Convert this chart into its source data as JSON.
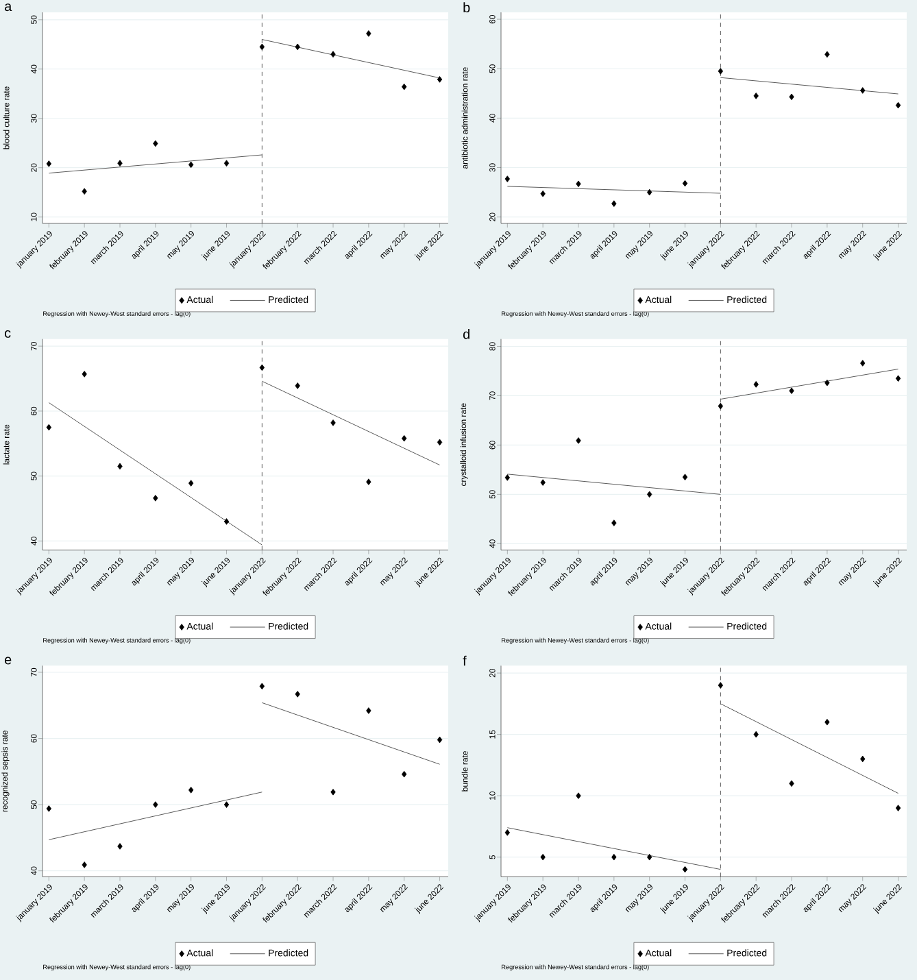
{
  "chart_data": [
    {
      "type": "scatter",
      "title": "a",
      "ylabel": "blood culture rate",
      "categories": [
        "january 2019",
        "february 2019",
        "march 2019",
        "april 2019",
        "may 2019",
        "june 2019",
        "january 2022",
        "february 2022",
        "march 2022",
        "april 2022",
        "may 2022",
        "june 2022"
      ],
      "ylim": [
        8.7,
        51.5
      ],
      "yticks": [
        10,
        20,
        30,
        40,
        50
      ],
      "grid": "y",
      "legend": "bottom",
      "annotations": [
        "Regression with Newey-West standard errors - lag(0)"
      ],
      "ref_lines": [
        {
          "axis": "x",
          "value": "january 2022",
          "line_style": "dashed",
          "color": "#595959"
        }
      ],
      "series": [
        {
          "name": "Actual",
          "marker": "diamond",
          "color": "#000000",
          "values": [
            20.8,
            15.2,
            20.9,
            24.9,
            20.6,
            20.9,
            44.5,
            44.5,
            43.0,
            47.2,
            36.4,
            37.9
          ]
        },
        {
          "name": "Predicted",
          "type": "line",
          "marker": "none",
          "color": "#595959",
          "x": [
            "january 2019",
            "january 2022"
          ],
          "values": [
            18.9,
            22.6
          ]
        },
        {
          "type": "line",
          "marker": "none",
          "color": "#595959",
          "x": [
            "january 2022",
            "june 2022"
          ],
          "values": [
            46.0,
            38.2
          ]
        }
      ]
    },
    {
      "type": "scatter",
      "title": "b",
      "ylabel": "antibiotic administration rate",
      "categories": [
        "january 2019",
        "february 2019",
        "march 2019",
        "april 2019",
        "may 2019",
        "june 2019",
        "january 2022",
        "february 2022",
        "march 2022",
        "april 2022",
        "may 2022",
        "june 2022"
      ],
      "ylim": [
        18.7,
        61.4
      ],
      "yticks": [
        20,
        30,
        40,
        50,
        60
      ],
      "grid": "y",
      "legend": "bottom",
      "annotations": [
        "Regression with Newey-West standard errors - lag(0)"
      ],
      "ref_lines": [
        {
          "axis": "x",
          "value": "january 2022",
          "line_style": "dashed",
          "color": "#595959"
        }
      ],
      "series": [
        {
          "name": "Actual",
          "marker": "diamond",
          "color": "#000000",
          "values": [
            27.7,
            24.7,
            26.7,
            22.7,
            25.0,
            26.8,
            49.5,
            44.5,
            44.3,
            52.9,
            45.6,
            42.6
          ]
        },
        {
          "name": "Predicted",
          "type": "line",
          "marker": "none",
          "color": "#595959",
          "x": [
            "january 2019",
            "january 2022"
          ],
          "values": [
            26.2,
            24.8
          ]
        },
        {
          "type": "line",
          "marker": "none",
          "color": "#595959",
          "x": [
            "january 2022",
            "june 2022"
          ],
          "values": [
            48.2,
            44.9
          ]
        }
      ]
    },
    {
      "type": "scatter",
      "title": "c",
      "ylabel": "lactate rate",
      "categories": [
        "january 2019",
        "february 2019",
        "march 2019",
        "april 2019",
        "may 2019",
        "june 2019",
        "january 2022",
        "february 2022",
        "march 2022",
        "april 2022",
        "may 2022",
        "june 2022"
      ],
      "ylim": [
        38.6,
        71.1
      ],
      "yticks": [
        40,
        50,
        60,
        70
      ],
      "grid": "y",
      "legend": "bottom",
      "annotations": [
        "Regression with Newey-West standard errors - lag(0)"
      ],
      "ref_lines": [
        {
          "axis": "x",
          "value": "january 2022",
          "line_style": "dashed",
          "color": "#595959"
        }
      ],
      "series": [
        {
          "name": "Actual",
          "marker": "diamond",
          "color": "#000000",
          "values": [
            57.5,
            65.7,
            51.5,
            46.6,
            48.9,
            43.0,
            66.7,
            63.9,
            58.2,
            49.1,
            55.8,
            55.2
          ]
        },
        {
          "name": "Predicted",
          "type": "line",
          "marker": "none",
          "color": "#595959",
          "x": [
            "january 2019",
            "january 2022"
          ],
          "values": [
            61.3,
            39.4
          ]
        },
        {
          "type": "line",
          "marker": "none",
          "color": "#595959",
          "x": [
            "january 2022",
            "june 2022"
          ],
          "values": [
            64.6,
            51.7
          ]
        }
      ]
    },
    {
      "type": "scatter",
      "title": "d",
      "ylabel": "crystalloid infusion rate",
      "categories": [
        "january 2019",
        "february 2019",
        "march 2019",
        "april 2019",
        "may 2019",
        "june 2019",
        "january 2022",
        "february 2022",
        "march 2022",
        "april 2022",
        "may 2022",
        "june 2022"
      ],
      "ylim": [
        38.7,
        81.5
      ],
      "yticks": [
        40,
        50,
        60,
        70,
        80
      ],
      "grid": "y",
      "legend": "bottom",
      "annotations": [
        "Regression with Newey-West standard errors - lag(0)"
      ],
      "ref_lines": [
        {
          "axis": "x",
          "value": "january 2022",
          "line_style": "dashed",
          "color": "#595959"
        }
      ],
      "series": [
        {
          "name": "Actual",
          "marker": "diamond",
          "color": "#000000",
          "values": [
            53.4,
            52.4,
            60.9,
            44.2,
            50.0,
            53.5,
            67.9,
            72.3,
            71.0,
            72.6,
            76.6,
            73.5
          ]
        },
        {
          "name": "Predicted",
          "type": "line",
          "marker": "none",
          "color": "#595959",
          "x": [
            "january 2019",
            "january 2022"
          ],
          "values": [
            54.1,
            50.0
          ]
        },
        {
          "type": "line",
          "marker": "none",
          "color": "#595959",
          "x": [
            "january 2022",
            "june 2022"
          ],
          "values": [
            69.3,
            75.4
          ]
        }
      ]
    },
    {
      "type": "scatter",
      "title": "e",
      "ylabel": "recognized sepsis rate",
      "categories": [
        "january 2019",
        "february 2019",
        "march 2019",
        "april 2019",
        "may 2019",
        "june 2019",
        "january 2022",
        "february 2022",
        "march 2022",
        "april 2022",
        "may 2022",
        "june 2022"
      ],
      "ylim": [
        39.1,
        71.0
      ],
      "yticks": [
        40,
        50,
        60,
        70
      ],
      "grid": "y",
      "legend": "bottom",
      "annotations": [
        "Regression with Newey-West standard errors - lag(0)"
      ],
      "series": [
        {
          "name": "Actual",
          "marker": "diamond",
          "color": "#000000",
          "values": [
            49.4,
            40.9,
            43.7,
            50.0,
            52.2,
            50.0,
            67.9,
            66.7,
            51.9,
            64.2,
            54.6,
            59.8
          ]
        },
        {
          "name": "Predicted",
          "type": "line",
          "marker": "none",
          "color": "#595959",
          "x": [
            "january 2019",
            "january 2022"
          ],
          "values": [
            44.7,
            51.9
          ]
        },
        {
          "type": "line",
          "marker": "none",
          "color": "#595959",
          "x": [
            "january 2022",
            "june 2022"
          ],
          "values": [
            65.4,
            56.1
          ]
        }
      ]
    },
    {
      "type": "scatter",
      "title": "f",
      "ylabel": "bundle rate",
      "categories": [
        "january 2019",
        "february 2019",
        "march 2019",
        "april 2019",
        "may 2019",
        "june 2019",
        "january 2022",
        "february 2022",
        "march 2022",
        "april 2022",
        "may 2022",
        "june 2022"
      ],
      "ylim": [
        3.4,
        20.6
      ],
      "yticks": [
        5,
        10,
        15,
        20
      ],
      "grid": "y",
      "legend": "bottom",
      "annotations": [
        "Regression with Newey-West standard errors - lag(0)"
      ],
      "ref_lines": [
        {
          "axis": "x",
          "value": "january 2022",
          "line_style": "dashed",
          "color": "#595959"
        }
      ],
      "series": [
        {
          "name": "Actual",
          "marker": "diamond",
          "color": "#000000",
          "values": [
            7,
            5,
            10,
            5,
            5,
            4,
            19,
            15,
            11,
            16,
            13,
            9
          ]
        },
        {
          "name": "Predicted",
          "type": "line",
          "marker": "none",
          "color": "#595959",
          "x": [
            "january 2019",
            "january 2022"
          ],
          "values": [
            7.4,
            4.0
          ]
        },
        {
          "type": "line",
          "marker": "none",
          "color": "#595959",
          "x": [
            "january 2022",
            "june 2022"
          ],
          "values": [
            17.5,
            10.2
          ]
        }
      ]
    }
  ]
}
